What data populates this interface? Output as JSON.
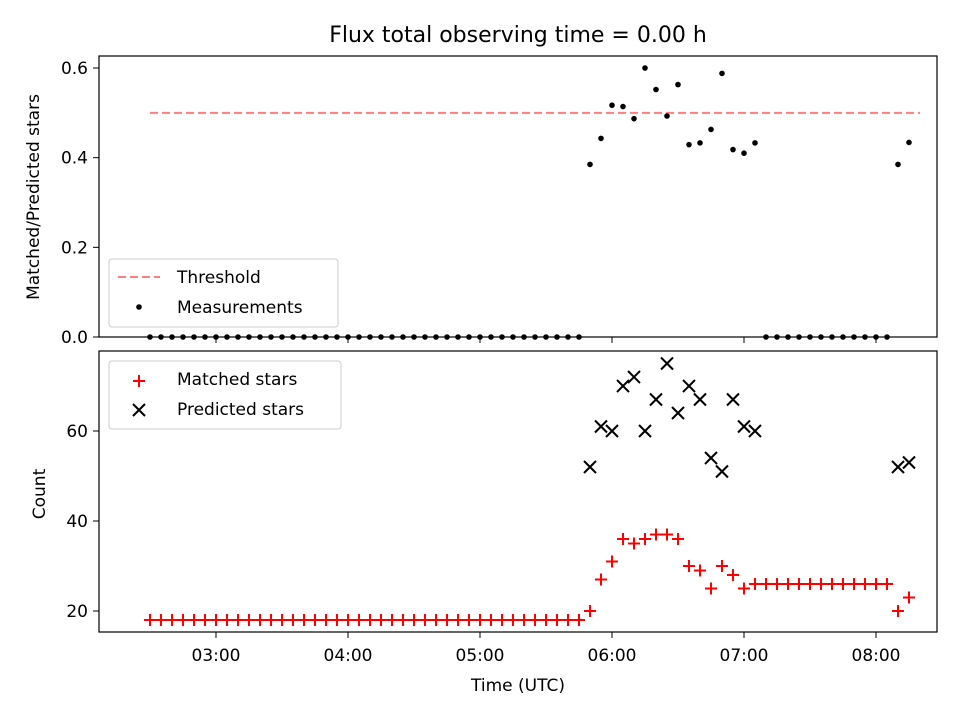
{
  "chart_data": [
    {
      "type": "scatter",
      "title": "Flux total observing time = 0.00 h",
      "xlabel": "",
      "ylabel": "Matched/Predicted stars",
      "ylim": [
        0,
        0.63
      ],
      "yticks": [
        "0.0",
        "0.2",
        "0.4",
        "0.6"
      ],
      "legend_position": "lower-left",
      "threshold": {
        "name": "Threshold",
        "value": 0.5,
        "x_range": [
          "02:30",
          "08:20"
        ],
        "color": "#ff7f7f"
      },
      "series": [
        {
          "name": "Measurements",
          "color": "#000000",
          "points": [
            [
              "02:30",
              0
            ],
            [
              "02:35",
              0
            ],
            [
              "02:40",
              0
            ],
            [
              "02:45",
              0
            ],
            [
              "02:50",
              0
            ],
            [
              "02:55",
              0
            ],
            [
              "03:00",
              0
            ],
            [
              "03:05",
              0
            ],
            [
              "03:10",
              0
            ],
            [
              "03:15",
              0
            ],
            [
              "03:20",
              0
            ],
            [
              "03:25",
              0
            ],
            [
              "03:30",
              0
            ],
            [
              "03:35",
              0
            ],
            [
              "03:40",
              0
            ],
            [
              "03:45",
              0
            ],
            [
              "03:50",
              0
            ],
            [
              "03:55",
              0
            ],
            [
              "04:00",
              0
            ],
            [
              "04:05",
              0
            ],
            [
              "04:10",
              0
            ],
            [
              "04:15",
              0
            ],
            [
              "04:20",
              0
            ],
            [
              "04:25",
              0
            ],
            [
              "04:30",
              0
            ],
            [
              "04:35",
              0
            ],
            [
              "04:40",
              0
            ],
            [
              "04:45",
              0
            ],
            [
              "04:50",
              0
            ],
            [
              "04:55",
              0
            ],
            [
              "05:00",
              0
            ],
            [
              "05:05",
              0
            ],
            [
              "05:10",
              0
            ],
            [
              "05:15",
              0
            ],
            [
              "05:20",
              0
            ],
            [
              "05:25",
              0
            ],
            [
              "05:30",
              0
            ],
            [
              "05:35",
              0
            ],
            [
              "05:40",
              0
            ],
            [
              "05:45",
              0
            ],
            [
              "05:50",
              0.385
            ],
            [
              "05:55",
              0.443
            ],
            [
              "06:00",
              0.517
            ],
            [
              "06:05",
              0.514
            ],
            [
              "06:10",
              0.487
            ],
            [
              "06:15",
              0.6
            ],
            [
              "06:20",
              0.552
            ],
            [
              "06:25",
              0.493
            ],
            [
              "06:30",
              0.563
            ],
            [
              "06:35",
              0.429
            ],
            [
              "06:40",
              0.433
            ],
            [
              "06:45",
              0.463
            ],
            [
              "06:50",
              0.588
            ],
            [
              "06:55",
              0.418
            ],
            [
              "07:00",
              0.41
            ],
            [
              "07:05",
              0.433
            ],
            [
              "07:10",
              0
            ],
            [
              "07:15",
              0
            ],
            [
              "07:20",
              0
            ],
            [
              "07:25",
              0
            ],
            [
              "07:30",
              0
            ],
            [
              "07:35",
              0
            ],
            [
              "07:40",
              0
            ],
            [
              "07:45",
              0
            ],
            [
              "07:50",
              0
            ],
            [
              "07:55",
              0
            ],
            [
              "08:00",
              0
            ],
            [
              "08:05",
              0
            ],
            [
              "08:10",
              0.385
            ],
            [
              "08:15",
              0.434
            ]
          ]
        }
      ]
    },
    {
      "type": "scatter",
      "xlabel": "Time (UTC)",
      "ylabel": "Count",
      "ylim": [
        15,
        77
      ],
      "yticks": [
        "20",
        "40",
        "60"
      ],
      "xticks": [
        "03:00",
        "04:00",
        "05:00",
        "06:00",
        "07:00",
        "08:00"
      ],
      "legend_position": "top-left",
      "series": [
        {
          "name": "Matched stars",
          "marker": "plus",
          "color": "#ff0000",
          "points": [
            [
              "02:30",
              18
            ],
            [
              "02:35",
              18
            ],
            [
              "02:40",
              18
            ],
            [
              "02:45",
              18
            ],
            [
              "02:50",
              18
            ],
            [
              "02:55",
              18
            ],
            [
              "03:00",
              18
            ],
            [
              "03:05",
              18
            ],
            [
              "03:10",
              18
            ],
            [
              "03:15",
              18
            ],
            [
              "03:20",
              18
            ],
            [
              "03:25",
              18
            ],
            [
              "03:30",
              18
            ],
            [
              "03:35",
              18
            ],
            [
              "03:40",
              18
            ],
            [
              "03:45",
              18
            ],
            [
              "03:50",
              18
            ],
            [
              "03:55",
              18
            ],
            [
              "04:00",
              18
            ],
            [
              "04:05",
              18
            ],
            [
              "04:10",
              18
            ],
            [
              "04:15",
              18
            ],
            [
              "04:20",
              18
            ],
            [
              "04:25",
              18
            ],
            [
              "04:30",
              18
            ],
            [
              "04:35",
              18
            ],
            [
              "04:40",
              18
            ],
            [
              "04:45",
              18
            ],
            [
              "04:50",
              18
            ],
            [
              "04:55",
              18
            ],
            [
              "05:00",
              18
            ],
            [
              "05:05",
              18
            ],
            [
              "05:10",
              18
            ],
            [
              "05:15",
              18
            ],
            [
              "05:20",
              18
            ],
            [
              "05:25",
              18
            ],
            [
              "05:30",
              18
            ],
            [
              "05:35",
              18
            ],
            [
              "05:40",
              18
            ],
            [
              "05:45",
              18
            ],
            [
              "05:50",
              20
            ],
            [
              "05:55",
              27
            ],
            [
              "06:00",
              31
            ],
            [
              "06:05",
              36
            ],
            [
              "06:10",
              35
            ],
            [
              "06:15",
              36
            ],
            [
              "06:20",
              37
            ],
            [
              "06:25",
              37
            ],
            [
              "06:30",
              36
            ],
            [
              "06:35",
              30
            ],
            [
              "06:40",
              29
            ],
            [
              "06:45",
              25
            ],
            [
              "06:50",
              30
            ],
            [
              "06:55",
              28
            ],
            [
              "07:00",
              25
            ],
            [
              "07:05",
              26
            ],
            [
              "07:10",
              26
            ],
            [
              "07:15",
              26
            ],
            [
              "07:20",
              26
            ],
            [
              "07:25",
              26
            ],
            [
              "07:30",
              26
            ],
            [
              "07:35",
              26
            ],
            [
              "07:40",
              26
            ],
            [
              "07:45",
              26
            ],
            [
              "07:50",
              26
            ],
            [
              "07:55",
              26
            ],
            [
              "08:00",
              26
            ],
            [
              "08:05",
              26
            ],
            [
              "08:10",
              20
            ],
            [
              "08:15",
              23
            ]
          ]
        },
        {
          "name": "Predicted stars",
          "marker": "x",
          "color": "#000000",
          "points": [
            [
              "05:50",
              52
            ],
            [
              "05:55",
              61
            ],
            [
              "06:00",
              60
            ],
            [
              "06:05",
              70
            ],
            [
              "06:10",
              72
            ],
            [
              "06:15",
              60
            ],
            [
              "06:20",
              67
            ],
            [
              "06:25",
              75
            ],
            [
              "06:30",
              64
            ],
            [
              "06:35",
              70
            ],
            [
              "06:40",
              67
            ],
            [
              "06:45",
              54
            ],
            [
              "06:50",
              51
            ],
            [
              "06:55",
              67
            ],
            [
              "07:00",
              61
            ],
            [
              "07:05",
              60
            ],
            [
              "08:10",
              52
            ],
            [
              "08:15",
              53
            ]
          ]
        }
      ]
    }
  ]
}
